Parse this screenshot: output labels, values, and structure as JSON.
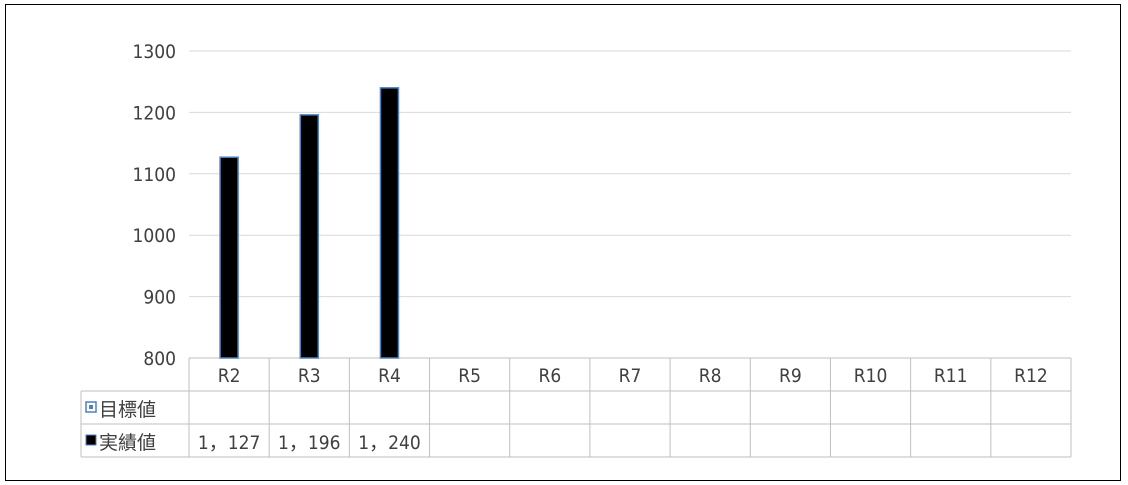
{
  "chart_data": {
    "type": "bar",
    "categories": [
      "R2",
      "R3",
      "R4",
      "R5",
      "R6",
      "R7",
      "R8",
      "R9",
      "R10",
      "R11",
      "R12"
    ],
    "series": [
      {
        "name": "目標値",
        "values": [
          null,
          null,
          null,
          null,
          null,
          null,
          null,
          null,
          null,
          null,
          null
        ],
        "color": "#dbe9f7",
        "legend_marker": "dotted-square"
      },
      {
        "name": "実績値",
        "values": [
          1127,
          1196,
          1240,
          null,
          null,
          null,
          null,
          null,
          null,
          null,
          null
        ],
        "color": "#000000",
        "border": "#4f81bd",
        "legend_marker": "solid-square"
      }
    ],
    "table_values": [
      [
        "",
        "",
        "",
        "",
        "",
        "",
        "",
        "",
        "",
        "",
        ""
      ],
      [
        "1，127",
        "1，196",
        "1，240",
        "",
        "",
        "",
        "",
        "",
        "",
        "",
        ""
      ]
    ],
    "yticks": [
      "800",
      "900",
      "1000",
      "1100",
      "1200",
      "1300"
    ],
    "ylim": [
      800,
      1300
    ],
    "grid": true,
    "data_table": true,
    "colors": {
      "gridline": "#d9d9d9",
      "table_border": "#bfbfbf",
      "text": "#404040"
    }
  }
}
